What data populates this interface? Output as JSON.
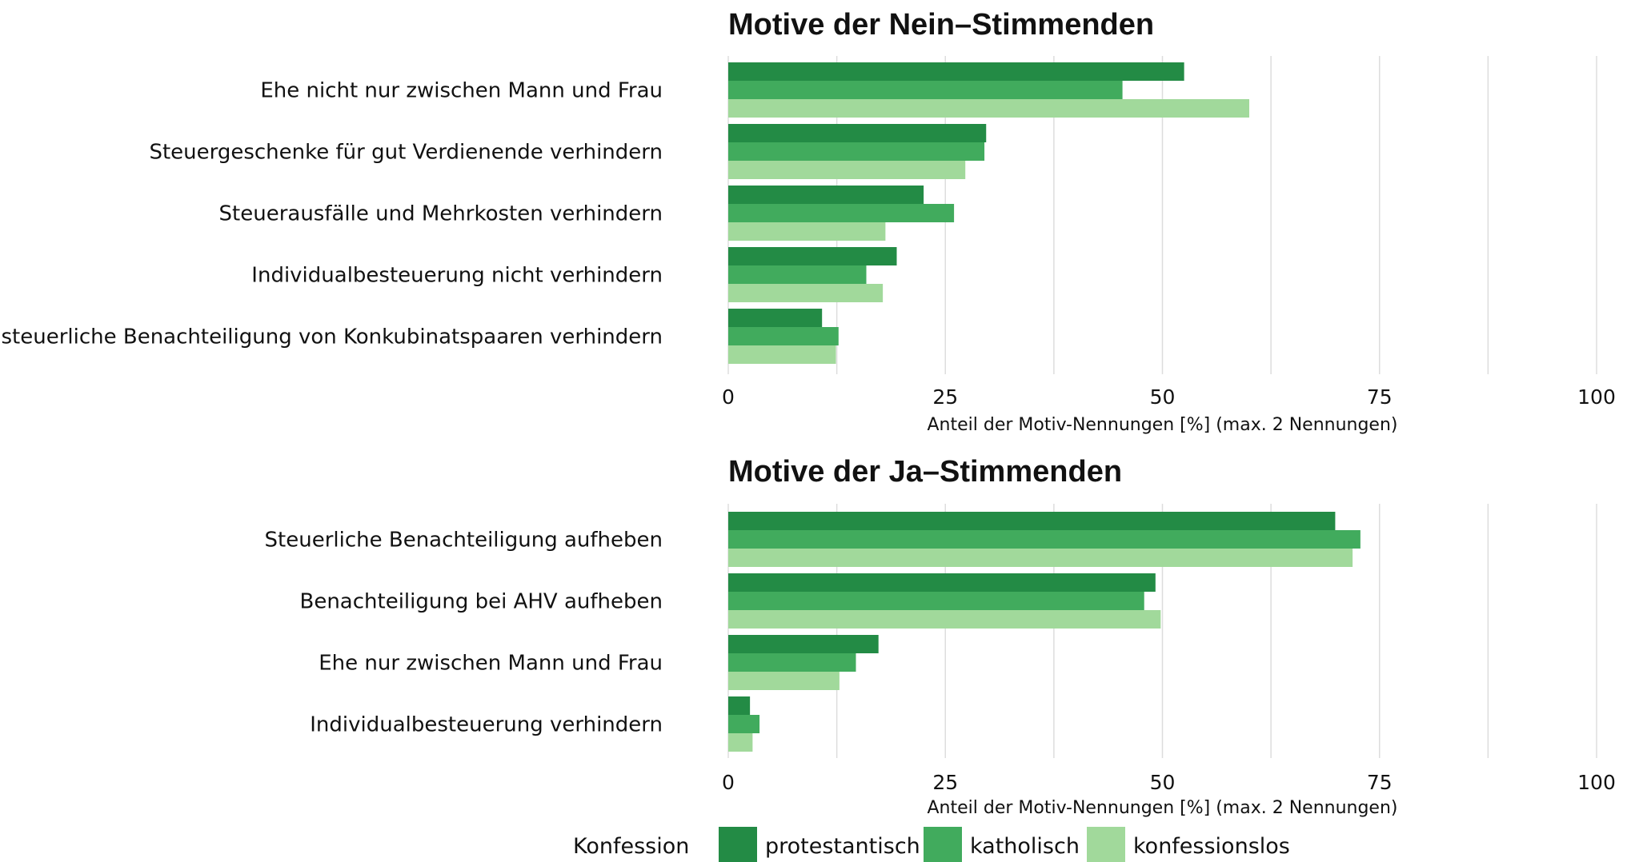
{
  "chart_data": [
    {
      "type": "bar",
      "orientation": "horizontal",
      "title": "Motive der Nein–Stimmenden",
      "xlabel": "Anteil der Motiv-Nennungen [%] (max. 2 Nennungen)",
      "xlim": [
        0,
        100
      ],
      "ticks": [
        "0",
        "25",
        "50",
        "75",
        "100"
      ],
      "grid": true,
      "categories": [
        "Ehe nicht nur zwischen Mann und Frau",
        "Steuergeschenke für gut Verdienende verhindern",
        "Steuerausfälle und Mehrkosten verhindern",
        "Individualbesteuerung nicht verhindern",
        "steuerliche Benachteiligung von Konkubinatspaaren verhindern"
      ],
      "series": [
        {
          "name": "protestantisch",
          "color": "#238b45",
          "values": [
            52.5,
            29.7,
            22.5,
            19.4,
            10.8
          ]
        },
        {
          "name": "katholisch",
          "color": "#41ab5d",
          "values": [
            45.4,
            29.5,
            26.0,
            15.9,
            12.7
          ]
        },
        {
          "name": "konfessionslos",
          "color": "#a1d99b",
          "values": [
            60.0,
            27.3,
            18.1,
            17.8,
            12.4
          ]
        }
      ]
    },
    {
      "type": "bar",
      "orientation": "horizontal",
      "title": "Motive der Ja–Stimmenden",
      "xlabel": "Anteil der Motiv-Nennungen [%] (max. 2 Nennungen)",
      "xlim": [
        0,
        100
      ],
      "ticks": [
        "0",
        "25",
        "50",
        "75",
        "100"
      ],
      "grid": true,
      "categories": [
        "Steuerliche Benachteiligung aufheben",
        "Benachteiligung bei AHV aufheben",
        "Ehe nur zwischen Mann und Frau",
        "Individualbesteuerung verhindern"
      ],
      "series": [
        {
          "name": "protestantisch",
          "color": "#238b45",
          "values": [
            69.9,
            49.2,
            17.3,
            2.5
          ]
        },
        {
          "name": "katholisch",
          "color": "#41ab5d",
          "values": [
            72.8,
            47.9,
            14.7,
            3.6
          ]
        },
        {
          "name": "konfessionslos",
          "color": "#a1d99b",
          "values": [
            71.9,
            49.8,
            12.8,
            2.8
          ]
        }
      ]
    }
  ],
  "legend": {
    "title": "Konfession",
    "items": [
      {
        "label": "protestantisch",
        "color": "#238b45"
      },
      {
        "label": "katholisch",
        "color": "#41ab5d"
      },
      {
        "label": "konfessionslos",
        "color": "#a1d99b"
      }
    ]
  }
}
